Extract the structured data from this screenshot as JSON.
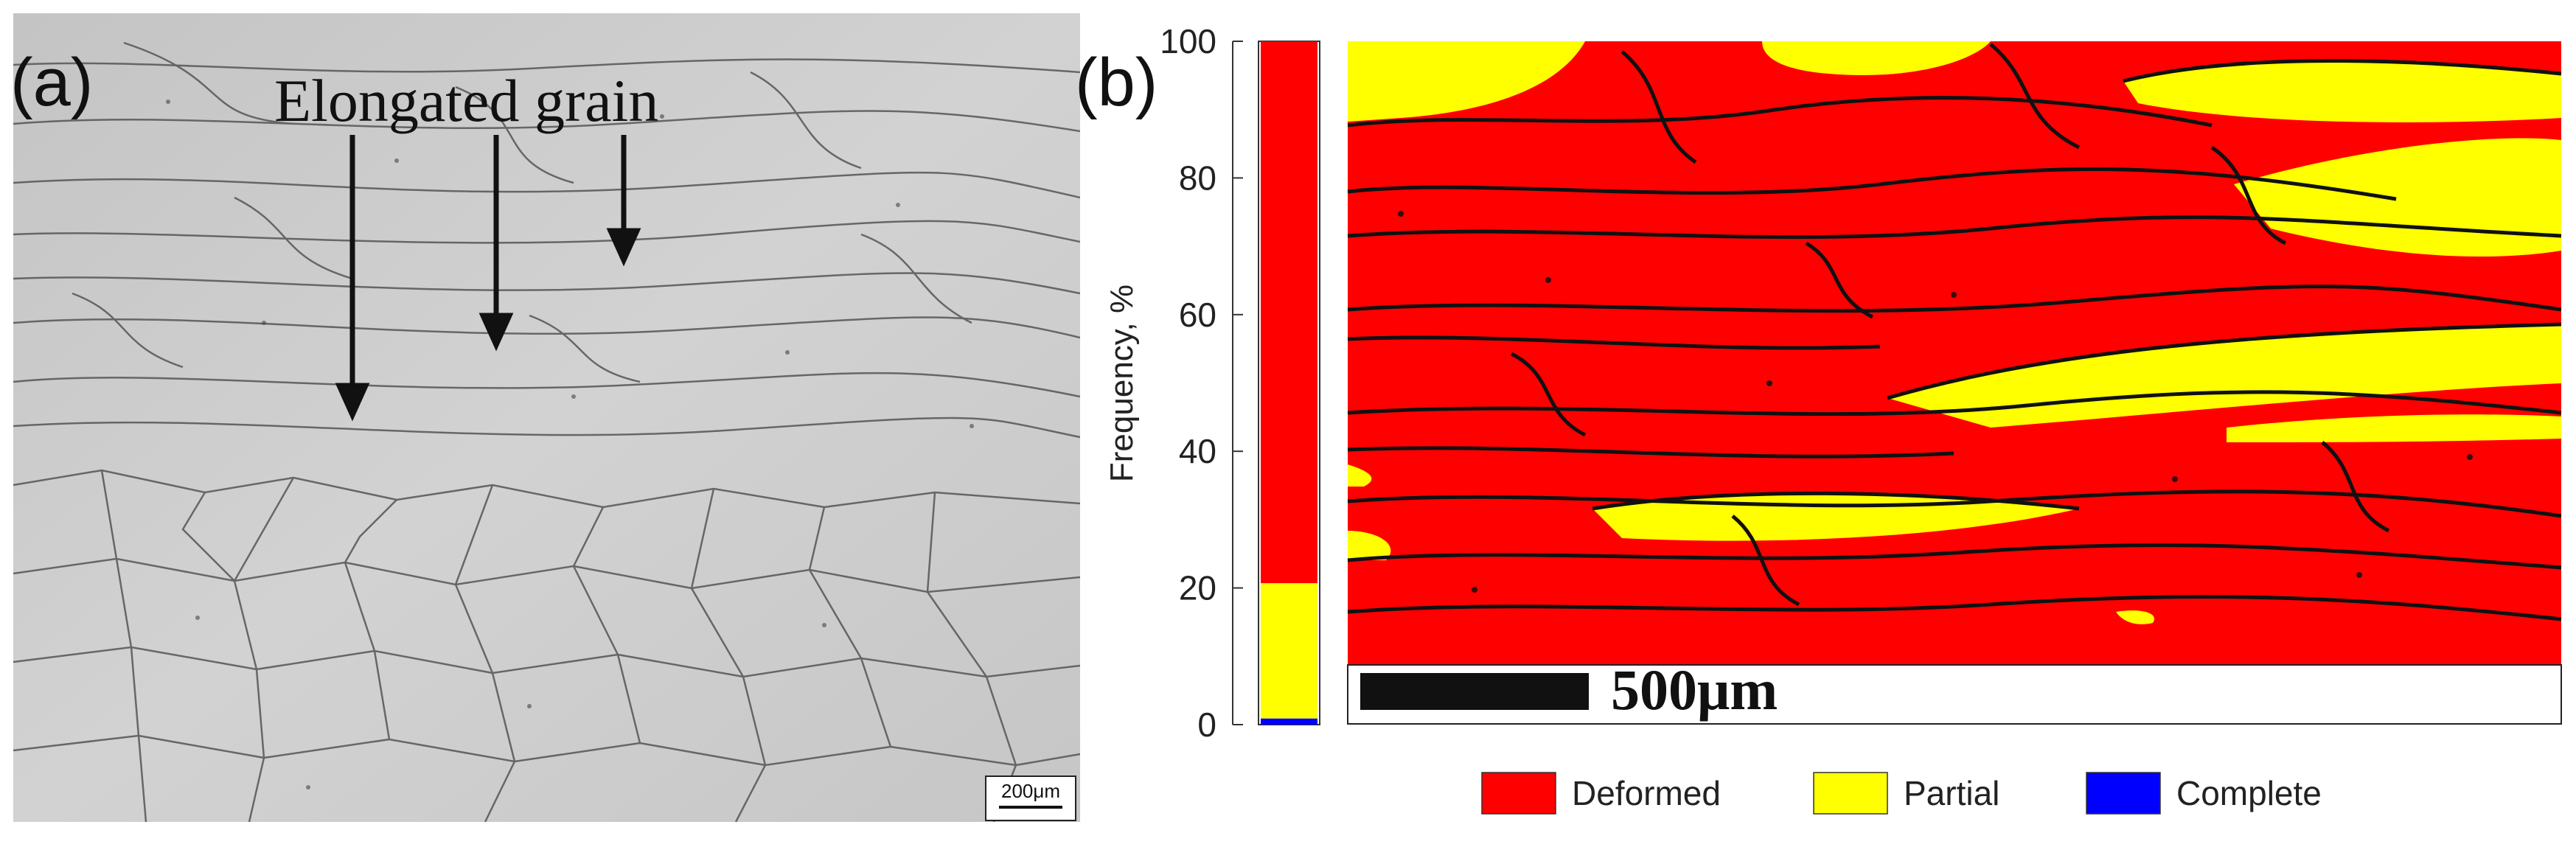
{
  "panel_a": {
    "label": "(a)",
    "annotation": "Elongated grain",
    "scale_bar": "200μm"
  },
  "panel_b": {
    "label": "(b)",
    "map_scale_bar": "500μm"
  },
  "chart_data": {
    "type": "bar",
    "stacked": true,
    "categories": [
      ""
    ],
    "series": [
      {
        "name": "Deformed",
        "values": [
          79.3
        ],
        "color": "#ff0000"
      },
      {
        "name": "Partial",
        "values": [
          19.8
        ],
        "color": "#ffff00"
      },
      {
        "name": "Complete",
        "values": [
          0.9
        ],
        "color": "#0000ff"
      }
    ],
    "ylabel": "Frequency, %",
    "ylim": [
      0,
      100
    ],
    "yticks": [
      0,
      20,
      40,
      60,
      80,
      100
    ],
    "legend_position": "bottom"
  },
  "colors": {
    "deformed": "#ff0000",
    "partial": "#ffff00",
    "complete": "#0000ff",
    "boundary": "#111111",
    "micrograph_bg": "#c9c9c9"
  }
}
